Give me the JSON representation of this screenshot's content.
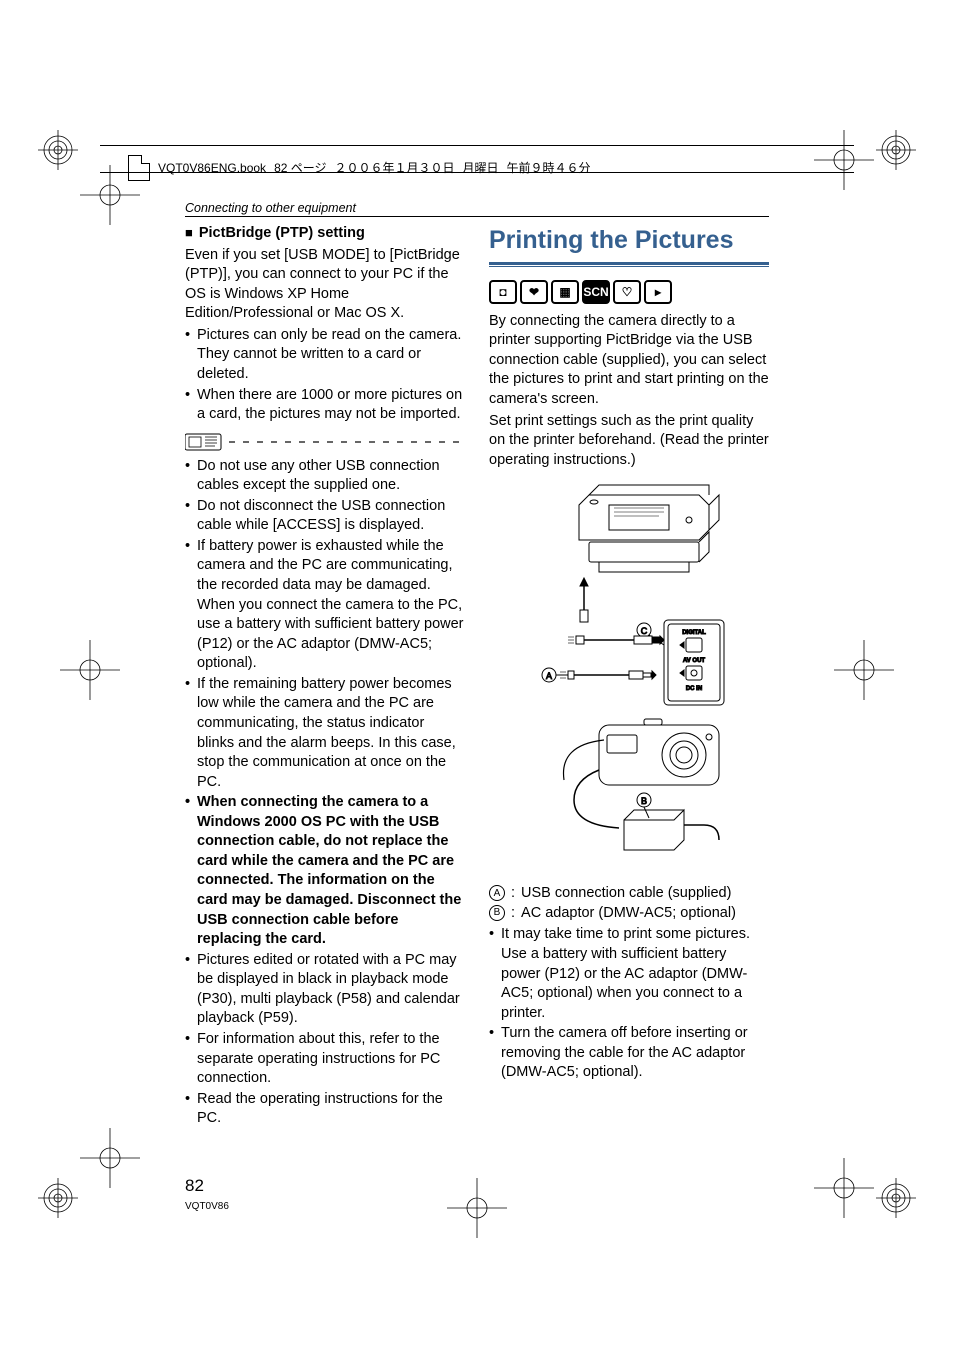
{
  "header": {
    "book_name": "VQT0V86ENG.book",
    "page_info": "82 ページ",
    "date": "２００６年１月３０日",
    "weekday": "月曜日",
    "time": "午前９時４６分"
  },
  "section_header": "Connecting to other equipment",
  "left": {
    "subhead": "PictBridge (PTP) setting",
    "intro": "Even if you set [USB MODE] to [PictBridge (PTP)], you can connect to your PC if the OS is Windows XP Home Edition/Professional or Mac OS X.",
    "bullets_top": [
      "Pictures can only be read on the camera. They cannot be written to a card or deleted.",
      "When there are 1000 or more pictures on a card, the pictures may not be imported."
    ],
    "notes": [
      "Do not use any other USB connection cables except the supplied one.",
      "Do not disconnect the USB connection cable while [ACCESS] is displayed.",
      "If battery power is exhausted while the camera and the PC are communicating, the recorded data may be damaged. When you connect the camera to the PC, use a battery with sufficient battery power (P12) or the AC adaptor (DMW-AC5; optional).",
      "If the remaining battery power becomes low while the camera and the PC are communicating, the status indicator blinks and the alarm beeps. In this case, stop the communication at once on the PC.",
      "When connecting the camera to a Windows 2000 OS PC with the USB connection cable, do not replace the card while the camera and the PC are connected. The information on the card may be damaged. Disconnect the USB connection cable before replacing the card.",
      "Pictures edited or rotated with a PC may be displayed in black in playback mode (P30), multi playback (P58) and calendar playback (P59).",
      "For information about this, refer to the separate operating instructions for PC connection.",
      "Read the operating instructions for the PC."
    ],
    "bold_note_index": 4
  },
  "right": {
    "title": "Printing the Pictures",
    "title_color": "#35608f",
    "mode_icons": [
      {
        "name": "camera-icon",
        "glyph": "◘",
        "inverted": false
      },
      {
        "name": "heart-hand-icon",
        "glyph": "❤",
        "inverted": false
      },
      {
        "name": "movie-icon",
        "glyph": "▦",
        "inverted": false
      },
      {
        "name": "scn-icon",
        "glyph": "SCN",
        "inverted": true
      },
      {
        "name": "heart-icon",
        "glyph": "♡",
        "inverted": false
      },
      {
        "name": "play-icon",
        "glyph": "▸",
        "inverted": false
      }
    ],
    "para1": "By connecting the camera directly to a printer supporting PictBridge via the USB connection cable (supplied), you can select the pictures to print and start printing on the camera's screen.",
    "para2": "Set print settings such as the print quality on the printer beforehand. (Read the printer operating instructions.)",
    "diagram_labels": {
      "A": "A",
      "B": "B",
      "C": "C",
      "digital": "DIGITAL",
      "avout": "AV OUT",
      "dcin": "DC IN"
    },
    "legend": [
      {
        "label": "A",
        "text": "USB connection cable (supplied)"
      },
      {
        "label": "B",
        "text": "AC adaptor (DMW-AC5; optional)"
      }
    ],
    "bullets": [
      "It may take time to print some pictures. Use a battery with sufficient battery power (P12) or the AC adaptor (DMW-AC5; optional) when you connect to a printer.",
      "Turn the camera off before inserting or removing the cable for the AC adaptor (DMW-AC5; optional)."
    ]
  },
  "footer": {
    "page_number": "82",
    "doc_code": "VQT0V86"
  }
}
